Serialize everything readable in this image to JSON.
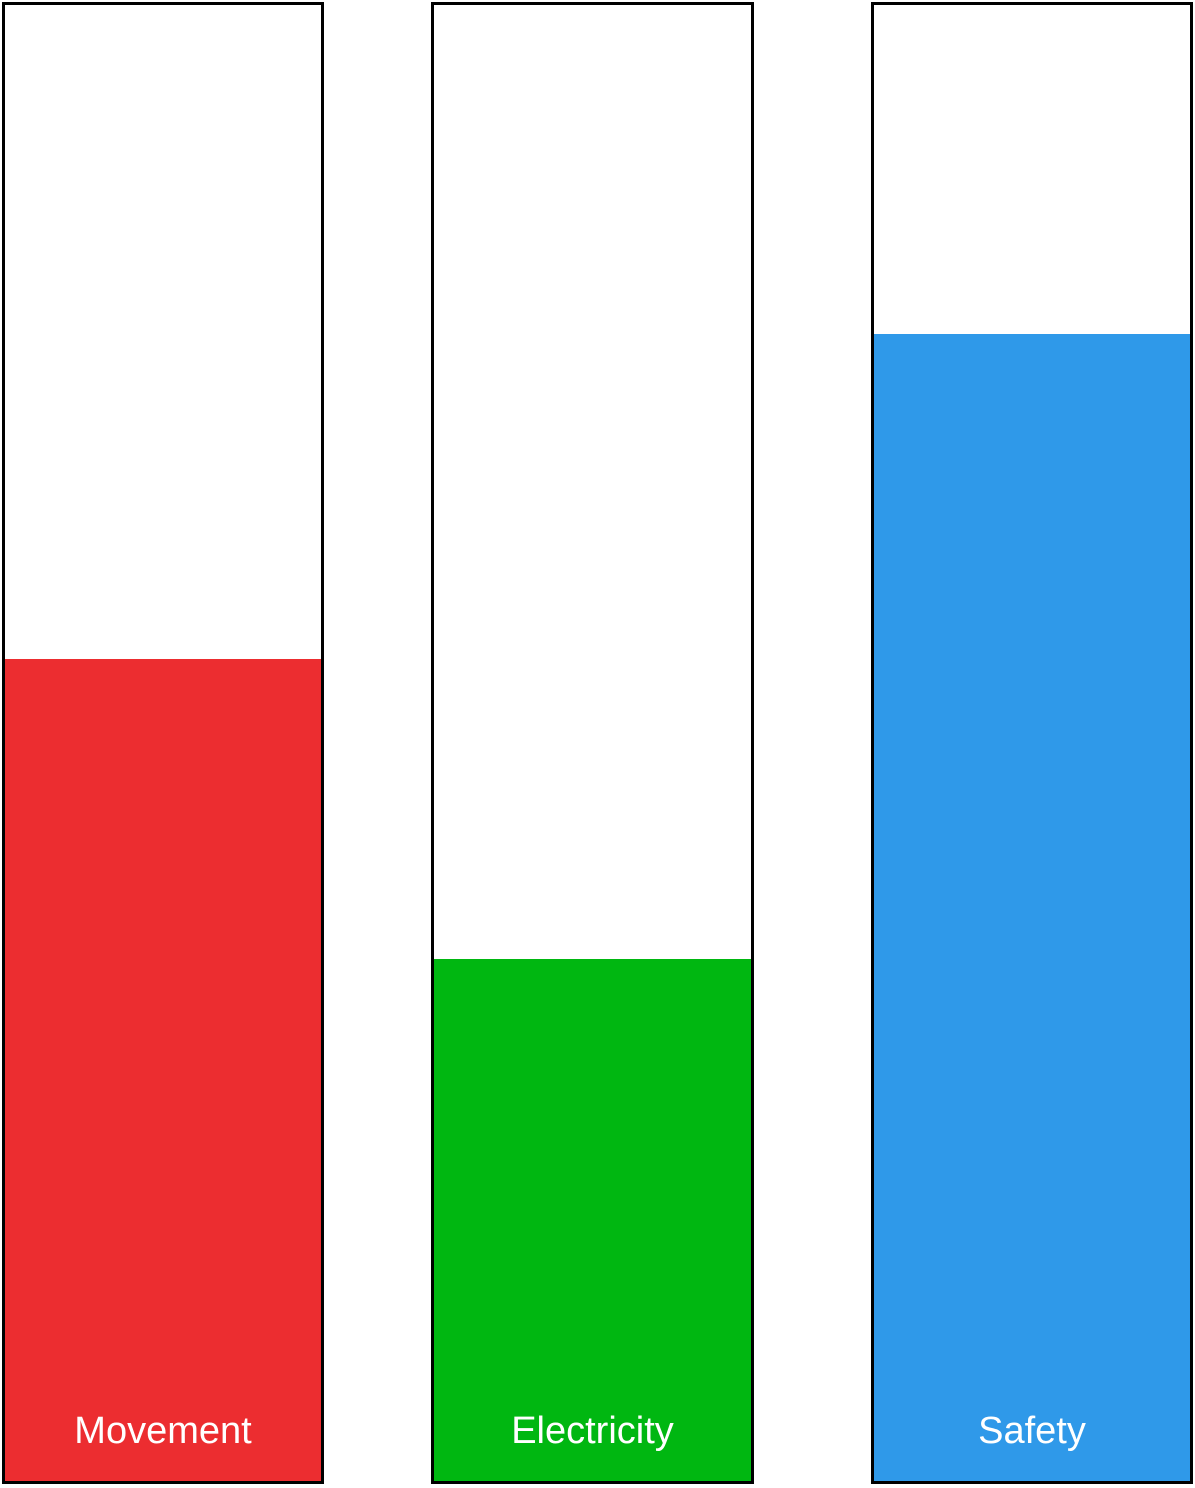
{
  "meters": [
    {
      "label": "Movement",
      "level": 0.557,
      "fill_color": "#ec2d30"
    },
    {
      "label": "Electricity",
      "level": 0.354,
      "fill_color": "#00b711"
    },
    {
      "label": "Safety",
      "level": 0.777,
      "fill_color": "#2f99e9"
    }
  ],
  "colors": {
    "background": "#ffffff",
    "border": "#000000",
    "label_text": "#ffffff"
  }
}
